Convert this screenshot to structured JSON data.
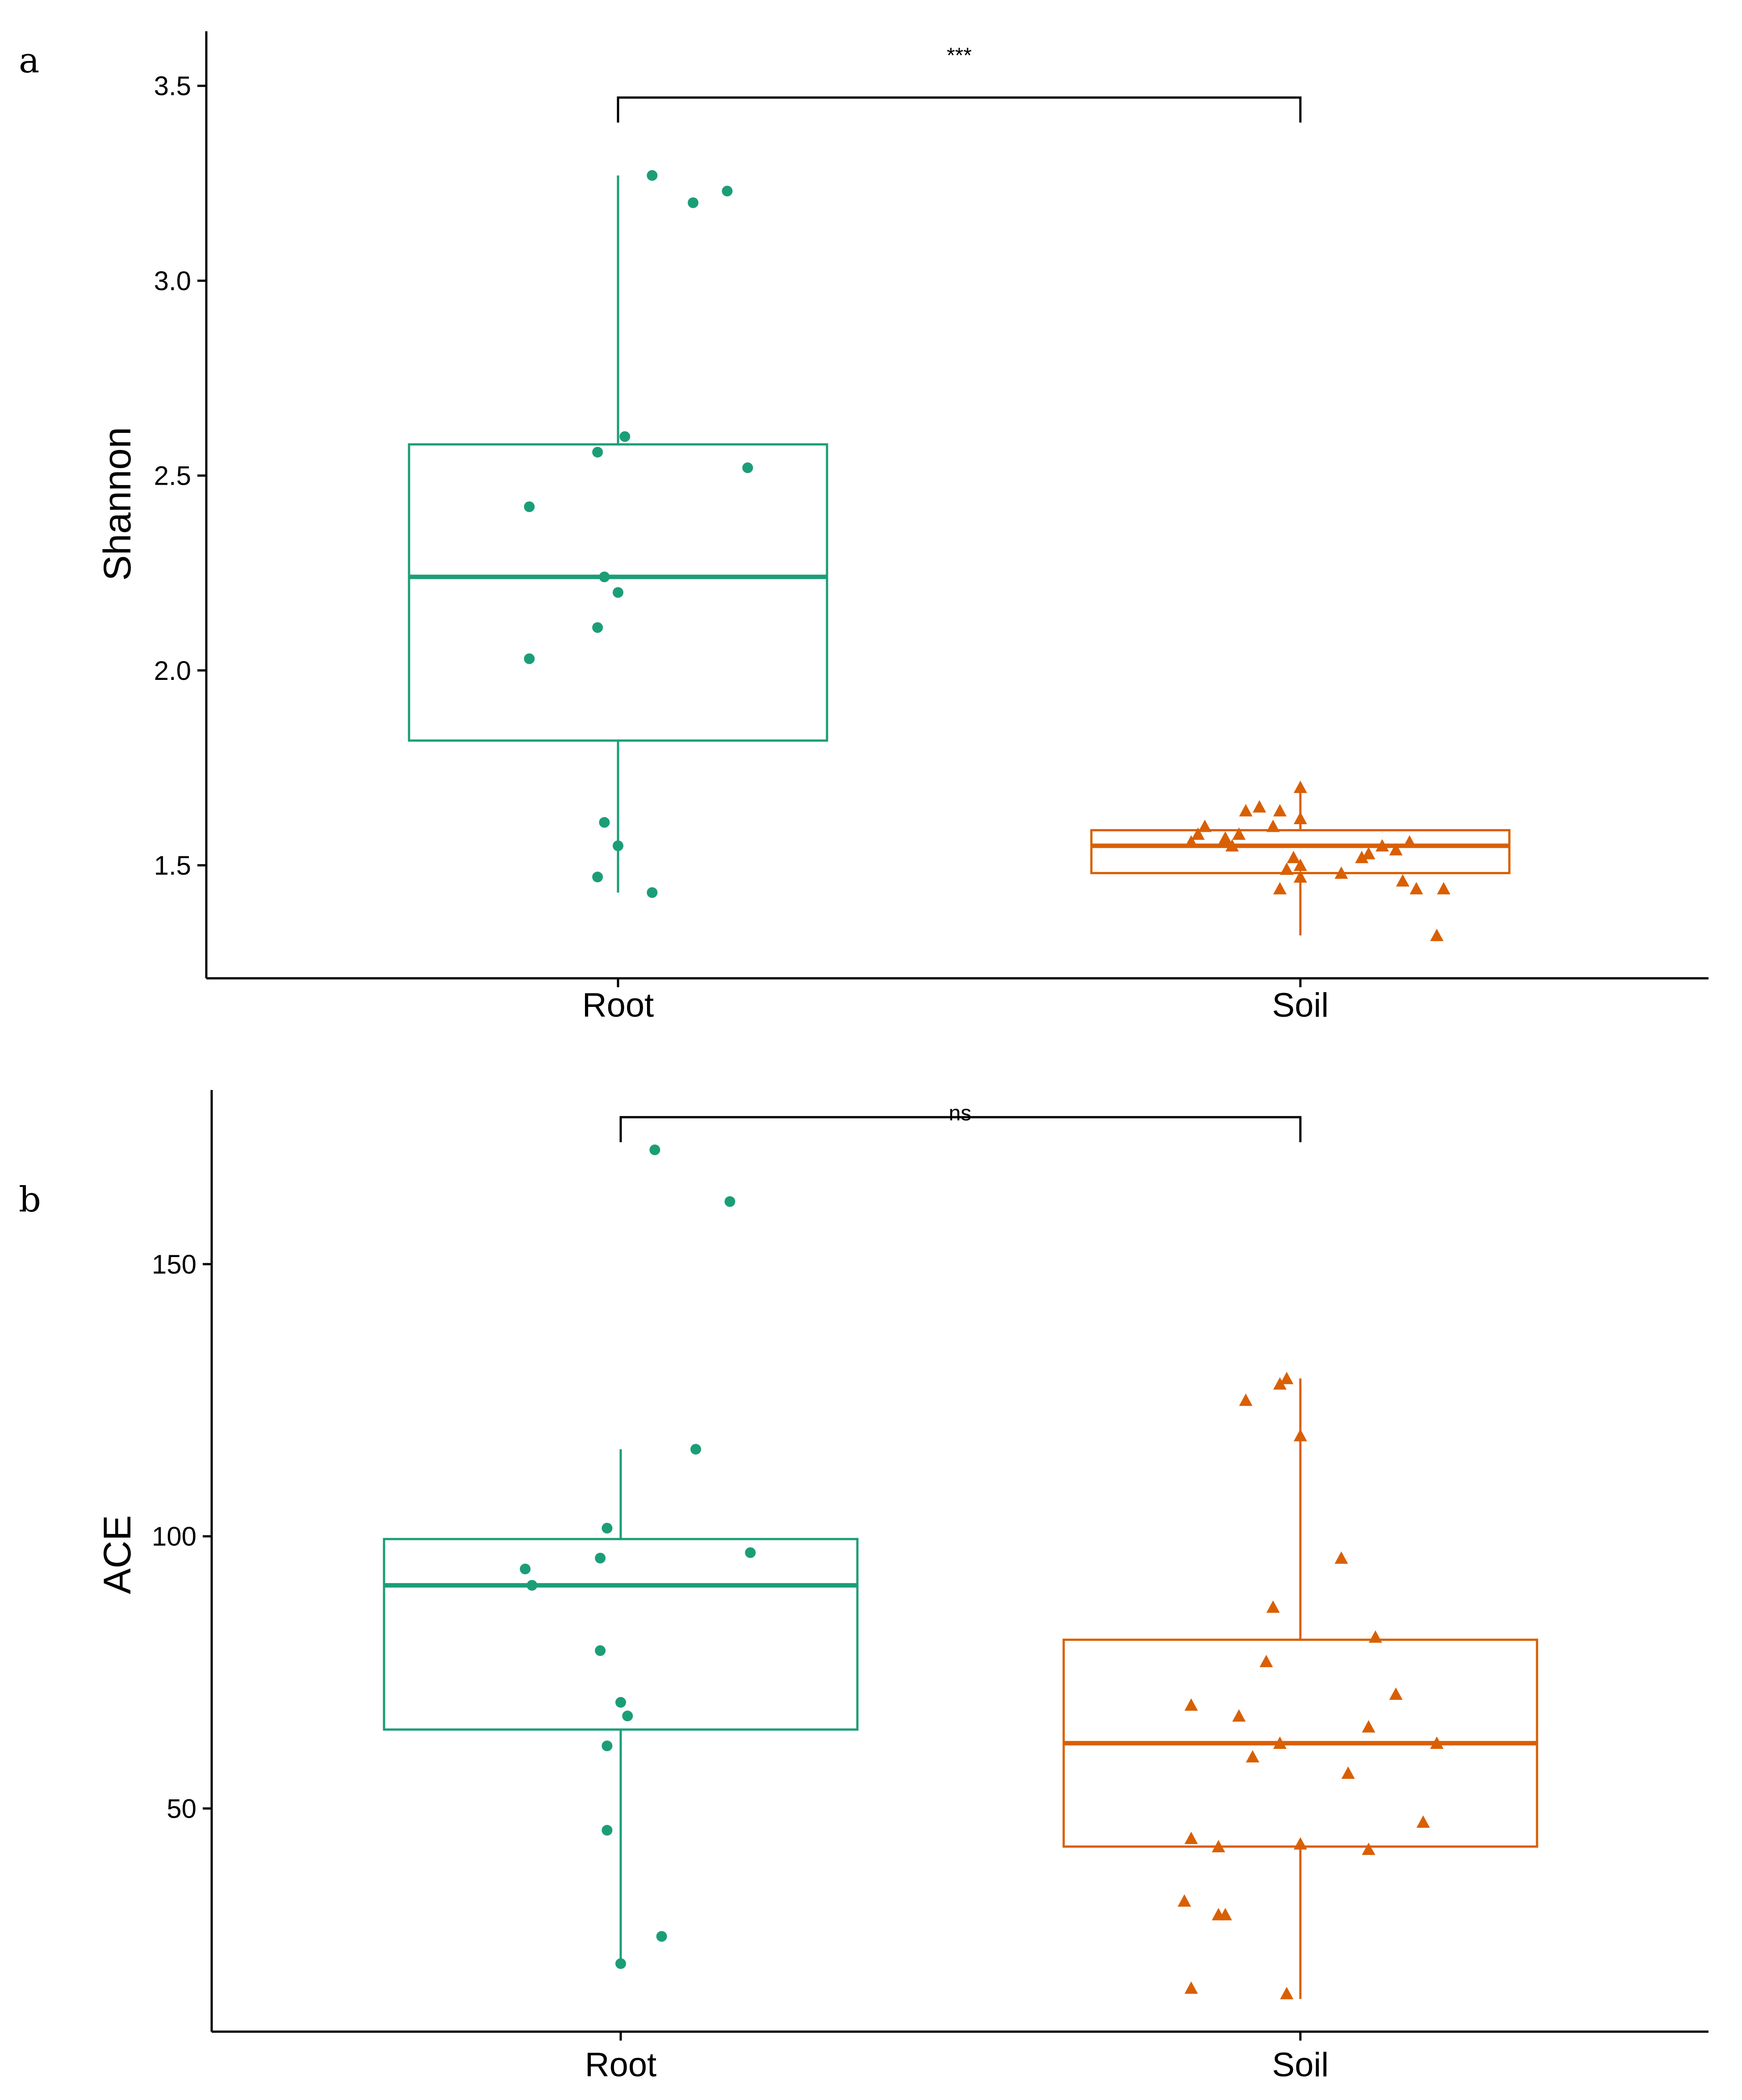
{
  "colors": {
    "root": "#1b9e77",
    "soil": "#d95f02"
  },
  "chart_data": [
    {
      "panel": "a",
      "type": "box",
      "ylabel": "Shannon",
      "categories": [
        "Root",
        "Soil"
      ],
      "ylim": [
        1.21,
        3.64
      ],
      "yticks": [
        1.5,
        2.0,
        2.5,
        3.0,
        3.5
      ],
      "ytick_labels": [
        "1.5",
        "2.0",
        "2.5",
        "3.0",
        "3.5"
      ],
      "boxes": [
        {
          "name": "Root",
          "q1": 1.82,
          "median": 2.24,
          "q3": 2.58,
          "whisker_low": 1.43,
          "whisker_high": 3.27
        },
        {
          "name": "Soil",
          "q1": 1.48,
          "median": 1.55,
          "q3": 1.59,
          "whisker_low": 1.32,
          "whisker_high": 1.7
        }
      ],
      "points": [
        {
          "group": "Root",
          "marker": "circle",
          "offsets": [
            0.05,
            0.11,
            0.16,
            -0.03,
            0.01,
            0.19,
            -0.13,
            -0.02,
            0.0,
            -0.03,
            -0.13,
            -0.02,
            0.0,
            -0.03,
            0.05
          ],
          "values": [
            3.27,
            3.2,
            3.23,
            2.56,
            2.6,
            2.52,
            2.42,
            2.24,
            2.2,
            2.11,
            2.03,
            1.61,
            1.55,
            1.47,
            1.43
          ]
        },
        {
          "group": "Soil",
          "marker": "triangle",
          "offsets": [
            -0.16,
            -0.14,
            -0.15,
            -0.1,
            -0.09,
            -0.11,
            -0.04,
            -0.08,
            -0.06,
            0.0,
            -0.03,
            -0.01,
            0.0,
            0.06,
            0.09,
            0.1,
            0.12,
            0.14,
            0.15,
            0.17,
            0.21,
            0.2,
            0.16,
            -0.03,
            -0.02,
            0.0,
            0.0
          ],
          "values": [
            1.56,
            1.6,
            1.58,
            1.55,
            1.58,
            1.57,
            1.6,
            1.64,
            1.65,
            1.7,
            1.64,
            1.52,
            1.62,
            1.48,
            1.52,
            1.53,
            1.55,
            1.54,
            1.46,
            1.44,
            1.44,
            1.32,
            1.56,
            1.44,
            1.49,
            1.47,
            1.5
          ]
        }
      ],
      "significance": {
        "label": "***",
        "y": 3.47
      }
    },
    {
      "panel": "b",
      "type": "box",
      "ylabel": "ACE",
      "categories": [
        "Root",
        "Soil"
      ],
      "ylim": [
        9,
        182
      ],
      "yticks": [
        50,
        100,
        150
      ],
      "ytick_labels": [
        "50",
        "100",
        "150"
      ],
      "boxes": [
        {
          "name": "Root",
          "q1": 64.5,
          "median": 91,
          "q3": 99.5,
          "whisker_low": 22,
          "whisker_high": 116
        },
        {
          "name": "Soil",
          "q1": 43,
          "median": 62,
          "q3": 81,
          "whisker_low": 15,
          "whisker_high": 129
        }
      ],
      "points": [
        {
          "group": "Root",
          "marker": "circle",
          "offsets": [
            0.05,
            0.16,
            0.11,
            -0.02,
            -0.14,
            -0.13,
            -0.03,
            0.19,
            -0.03,
            0.0,
            0.01,
            -0.02,
            -0.02,
            0.06,
            0.0
          ],
          "values": [
            171,
            161.5,
            116,
            101.5,
            94,
            91,
            96,
            97,
            79,
            69.5,
            67,
            61.5,
            46,
            26.5,
            21.5
          ]
        },
        {
          "group": "Soil",
          "marker": "triangle",
          "offsets": [
            -0.03,
            -0.02,
            -0.08,
            0.0,
            0.06,
            -0.04,
            0.11,
            -0.05,
            -0.16,
            -0.09,
            0.14,
            -0.07,
            0.1,
            0.07,
            0.18,
            -0.16,
            -0.12,
            0.0,
            -0.12,
            0.1,
            -0.17,
            -0.11,
            -0.02,
            -0.16,
            -0.03,
            0.2
          ],
          "values": [
            128,
            129,
            125,
            118.5,
            96,
            87,
            81.5,
            77,
            69,
            67,
            71,
            59.5,
            65,
            56.5,
            47.5,
            44.5,
            43,
            43.5,
            30.5,
            42.5,
            33,
            30.5,
            16,
            17,
            62,
            62
          ]
        }
      ],
      "significance": {
        "label": "ns",
        "y": 177
      }
    }
  ],
  "panels": [
    {
      "letter": "a"
    },
    {
      "letter": "b"
    }
  ]
}
